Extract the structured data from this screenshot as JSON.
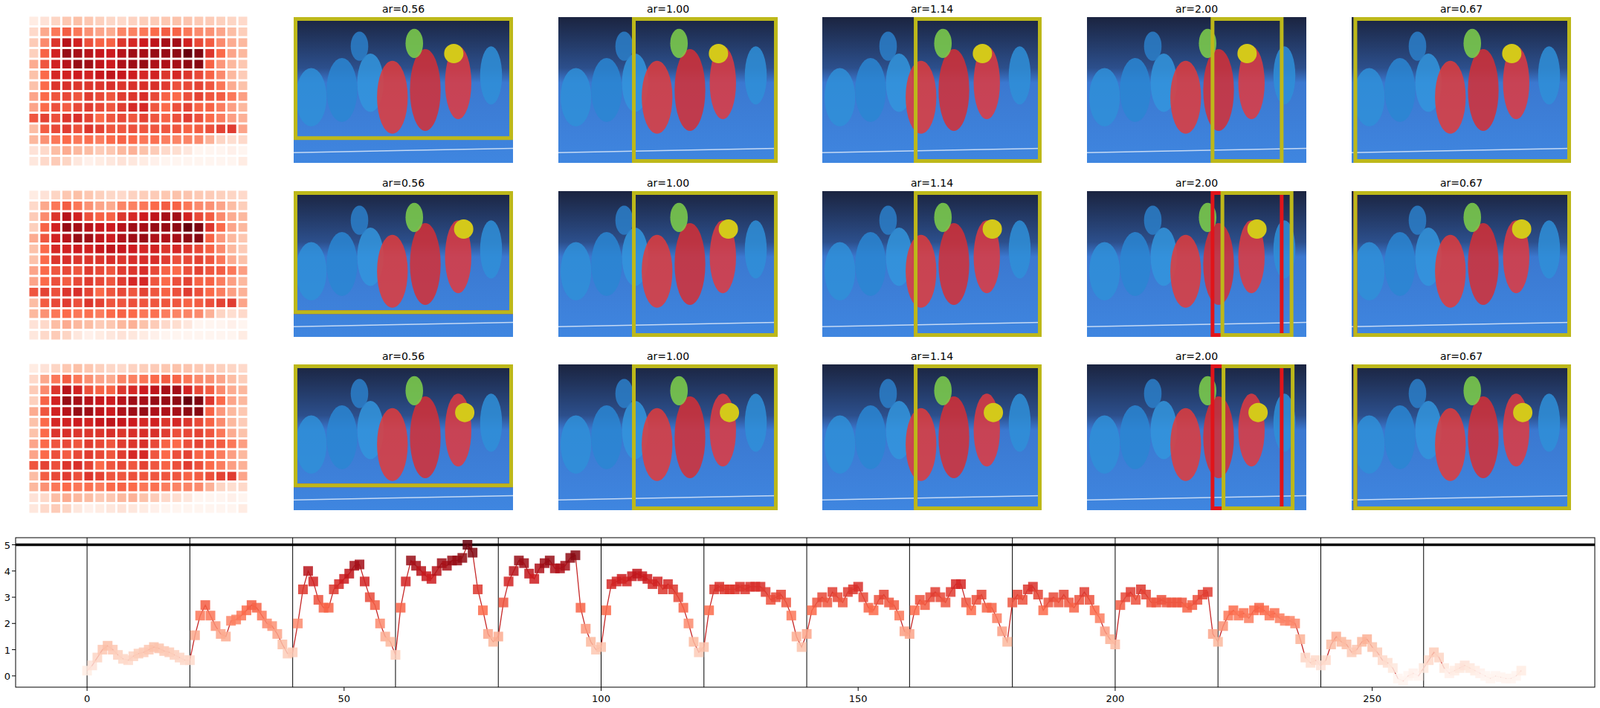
{
  "chart_data": [
    {
      "type": "image_grid",
      "color_range": [
        0,
        5
      ],
      "heatmap": {
        "rows": 14,
        "cols": 20
      },
      "rows": [
        {
          "focus": [
            0.73,
            0.25
          ],
          "crops": [
            {
              "title": "ar=0.56",
              "ar": 0.56
            },
            {
              "title": "ar=1.00",
              "ar": 1.0
            },
            {
              "title": "ar=1.14",
              "ar": 1.14
            },
            {
              "title": "ar=2.00",
              "ar": 2.0
            },
            {
              "title": "ar=0.67",
              "ar": 0.67
            }
          ]
        },
        {
          "focus": [
            0.775,
            0.26
          ],
          "reference_focus": [
            0.73,
            0.25
          ],
          "crops": [
            {
              "title": "ar=0.56",
              "ar": 0.56
            },
            {
              "title": "ar=1.00",
              "ar": 1.0
            },
            {
              "title": "ar=1.14",
              "ar": 1.14
            },
            {
              "title": "ar=2.00",
              "ar": 2.0
            },
            {
              "title": "ar=0.67",
              "ar": 0.67
            }
          ]
        },
        {
          "focus": [
            0.78,
            0.33
          ],
          "reference_focus": [
            0.73,
            0.25
          ],
          "crops": [
            {
              "title": "ar=0.56",
              "ar": 0.56
            },
            {
              "title": "ar=1.00",
              "ar": 1.0
            },
            {
              "title": "ar=1.14",
              "ar": 1.14
            },
            {
              "title": "ar=2.00",
              "ar": 2.0
            },
            {
              "title": "ar=0.67",
              "ar": 0.67
            }
          ]
        }
      ]
    },
    {
      "type": "line",
      "marker": "square",
      "color": "#c62828",
      "xlim": [
        -13.9,
        293.3
      ],
      "ylim": [
        -0.43,
        5.27
      ],
      "xticks": [
        0,
        50,
        100,
        150,
        200,
        250
      ],
      "yticks": [
        0,
        1,
        2,
        3,
        4,
        5
      ],
      "vlines": [
        0,
        20,
        40,
        60,
        80,
        100,
        120,
        140,
        160,
        180,
        200,
        220,
        240,
        260
      ],
      "reference_line": 5,
      "x": [
        0,
        1,
        2,
        3,
        4,
        5,
        6,
        7,
        8,
        9,
        10,
        11,
        12,
        13,
        14,
        15,
        16,
        17,
        18,
        19,
        20,
        21,
        22,
        23,
        24,
        25,
        26,
        27,
        28,
        29,
        30,
        31,
        32,
        33,
        34,
        35,
        36,
        37,
        38,
        39,
        40,
        41,
        42,
        43,
        44,
        45,
        46,
        47,
        48,
        49,
        50,
        51,
        52,
        53,
        54,
        55,
        56,
        57,
        58,
        59,
        60,
        61,
        62,
        63,
        64,
        65,
        66,
        67,
        68,
        69,
        70,
        71,
        72,
        73,
        74,
        75,
        76,
        77,
        78,
        79,
        80,
        81,
        82,
        83,
        84,
        85,
        86,
        87,
        88,
        89,
        90,
        91,
        92,
        93,
        94,
        95,
        96,
        97,
        98,
        99,
        100,
        101,
        102,
        103,
        104,
        105,
        106,
        107,
        108,
        109,
        110,
        111,
        112,
        113,
        114,
        115,
        116,
        117,
        118,
        119,
        120,
        121,
        122,
        123,
        124,
        125,
        126,
        127,
        128,
        129,
        130,
        131,
        132,
        133,
        134,
        135,
        136,
        137,
        138,
        139,
        140,
        141,
        142,
        143,
        144,
        145,
        146,
        147,
        148,
        149,
        150,
        151,
        152,
        153,
        154,
        155,
        156,
        157,
        158,
        159,
        160,
        161,
        162,
        163,
        164,
        165,
        166,
        167,
        168,
        169,
        170,
        171,
        172,
        173,
        174,
        175,
        176,
        177,
        178,
        179,
        180,
        181,
        182,
        183,
        184,
        185,
        186,
        187,
        188,
        189,
        190,
        191,
        192,
        193,
        194,
        195,
        196,
        197,
        198,
        199,
        200,
        201,
        202,
        203,
        204,
        205,
        206,
        207,
        208,
        209,
        210,
        211,
        212,
        213,
        214,
        215,
        216,
        217,
        218,
        219,
        220,
        221,
        222,
        223,
        224,
        225,
        226,
        227,
        228,
        229,
        230,
        231,
        232,
        233,
        234,
        235,
        236,
        237,
        238,
        239,
        240,
        241,
        242,
        243,
        244,
        245,
        246,
        247,
        248,
        249,
        250,
        251,
        252,
        253,
        254,
        255,
        256,
        257,
        258,
        259,
        260,
        261,
        262,
        263,
        264,
        265,
        266,
        267,
        268,
        269,
        270,
        271,
        272,
        273,
        274,
        275,
        276,
        277,
        278,
        279
      ],
      "values": [
        0.2,
        0.4,
        0.7,
        1.0,
        1.15,
        1.0,
        0.8,
        0.65,
        0.6,
        0.75,
        0.85,
        0.9,
        1.0,
        1.1,
        1.05,
        0.95,
        0.9,
        0.8,
        0.7,
        0.6,
        0.6,
        1.55,
        2.3,
        2.7,
        2.3,
        1.9,
        1.6,
        1.5,
        2.1,
        2.15,
        2.3,
        2.5,
        2.7,
        2.6,
        2.3,
        2.0,
        1.9,
        1.6,
        1.2,
        0.85,
        0.9,
        2.0,
        3.3,
        4.0,
        3.6,
        2.9,
        2.6,
        2.6,
        3.3,
        3.5,
        3.7,
        3.9,
        4.2,
        4.25,
        3.6,
        3.0,
        2.7,
        2.0,
        1.5,
        1.3,
        0.8,
        2.6,
        3.6,
        4.4,
        4.2,
        4.0,
        3.8,
        3.7,
        4.0,
        4.3,
        4.2,
        4.4,
        4.4,
        4.5,
        5.0,
        4.7,
        3.3,
        2.5,
        1.6,
        1.3,
        1.5,
        2.8,
        3.6,
        4.0,
        4.4,
        4.3,
        3.9,
        3.7,
        4.1,
        4.3,
        4.4,
        4.1,
        4.1,
        4.2,
        4.5,
        4.6,
        2.6,
        1.8,
        1.3,
        1.0,
        1.1,
        2.5,
        3.5,
        3.6,
        3.7,
        3.6,
        3.8,
        3.9,
        3.8,
        3.7,
        3.5,
        3.6,
        3.3,
        3.5,
        3.3,
        3.0,
        2.6,
        2.0,
        1.3,
        0.9,
        1.1,
        2.5,
        3.3,
        3.4,
        3.3,
        3.3,
        3.3,
        3.4,
        3.3,
        3.4,
        3.4,
        3.4,
        3.2,
        2.9,
        3.0,
        3.1,
        2.8,
        2.3,
        1.5,
        1.1,
        1.6,
        2.5,
        2.8,
        3.0,
        2.8,
        3.2,
        3.0,
        2.8,
        3.2,
        3.3,
        3.4,
        3.0,
        2.6,
        2.5,
        2.9,
        3.1,
        2.8,
        2.7,
        2.3,
        1.7,
        1.6,
        2.5,
        2.9,
        2.7,
        3.0,
        3.2,
        3.0,
        2.8,
        3.2,
        3.5,
        3.5,
        2.8,
        2.5,
        2.9,
        3.1,
        2.6,
        2.6,
        2.2,
        1.7,
        1.3,
        2.8,
        3.1,
        2.9,
        3.3,
        3.4,
        3.1,
        2.5,
        2.8,
        3.0,
        2.8,
        3.1,
        2.8,
        2.6,
        2.9,
        3.2,
        2.9,
        2.5,
        2.2,
        1.7,
        1.4,
        1.2,
        2.7,
        3.0,
        3.2,
        2.9,
        3.3,
        3.1,
        2.8,
        2.8,
        2.9,
        2.8,
        2.8,
        2.8,
        2.8,
        2.6,
        2.7,
        2.9,
        3.1,
        3.2,
        1.6,
        1.3,
        1.9,
        2.3,
        2.5,
        2.3,
        2.4,
        2.2,
        2.5,
        2.6,
        2.5,
        2.3,
        2.4,
        2.2,
        2.1,
        2.1,
        2.0,
        1.4,
        0.7,
        0.5,
        0.6,
        0.4,
        0.6,
        1.2,
        1.5,
        1.3,
        1.2,
        0.9,
        1.0,
        1.3,
        1.4,
        1.1,
        0.9,
        0.6,
        0.5,
        0.3,
        -0.1,
        -0.2,
        0.0,
        0.1,
        0.0,
        0.3,
        0.6,
        0.9,
        0.7,
        0.3,
        0.1,
        0.2,
        0.3,
        0.4,
        0.3,
        0.2,
        0.1,
        0.0,
        -0.1,
        0.0,
        -0.05,
        -0.1,
        -0.1,
        0.0,
        0.2
      ]
    }
  ]
}
